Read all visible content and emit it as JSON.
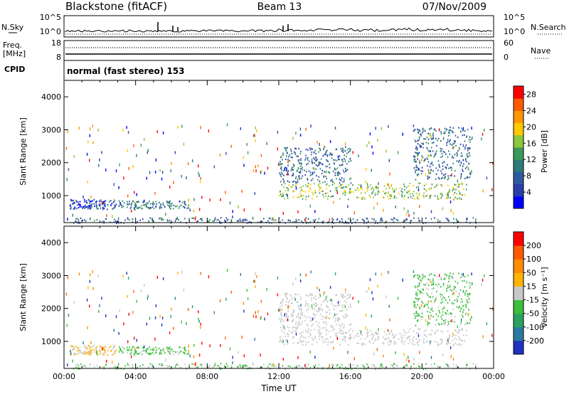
{
  "header": {
    "station": "Blackstone (fitACF)",
    "beam": "Beam 13",
    "date": "07/Nov/2009"
  },
  "nsky_panel": {
    "left_label": "N.Sky",
    "right_label": "N.Search",
    "left_ticks": [
      "10^5",
      "10^0"
    ],
    "right_ticks": [
      "10^5",
      "10^0"
    ]
  },
  "freq_panel": {
    "left_label_1": "Freq.",
    "left_label_2": "[MHz]",
    "right_label": "Nave",
    "left_ticks": [
      "18",
      "8"
    ],
    "right_ticks": [
      "60",
      "0"
    ]
  },
  "cpid_panel": {
    "label": "CPID",
    "program": "normal (fast stereo) 153"
  },
  "colors": {
    "power": [
      "#0000ff",
      "#2a3eaa",
      "#2e5aa0",
      "#2f7a7a",
      "#3a9a5a",
      "#8cc63c",
      "#ffc800",
      "#ff9600",
      "#ff5a00",
      "#ff0000"
    ],
    "velocity": [
      "#2030c0",
      "#2a7aa0",
      "#2aa060",
      "#3cbf3c",
      "#c8c8c8",
      "#ffb400",
      "#ff8c00",
      "#ff5a00",
      "#ff0000"
    ]
  },
  "chart_data": [
    {
      "type": "heatmap",
      "name": "power",
      "xlabel": "",
      "ylabel": "Slant Range [km]",
      "xlim": [
        0,
        24
      ],
      "ylim": [
        180,
        4500
      ],
      "yticks": [
        "1000",
        "2000",
        "3000",
        "4000"
      ],
      "colorbar": {
        "label": "Power [dB]",
        "ticks": [
          "4",
          "8",
          "12",
          "16",
          "20",
          "24",
          "28"
        ],
        "range": [
          0,
          30
        ]
      },
      "features": [
        {
          "x": [
            0.3,
            2.9
          ],
          "y": [
            600,
            900
          ],
          "value": 5
        },
        {
          "x": [
            3.0,
            7.0
          ],
          "y": [
            620,
            860
          ],
          "value": 10
        },
        {
          "x": [
            0.5,
            23.0
          ],
          "y": [
            180,
            350
          ],
          "value": 8
        },
        {
          "x": [
            12.0,
            22.5
          ],
          "y": [
            900,
            1400
          ],
          "value": 16
        },
        {
          "x": [
            12.0,
            16.0
          ],
          "y": [
            1400,
            2500
          ],
          "value": 8
        },
        {
          "x": [
            19.5,
            22.7
          ],
          "y": [
            1500,
            3100
          ],
          "value": 8
        }
      ]
    },
    {
      "type": "heatmap",
      "name": "velocity",
      "xlabel": "Time UT",
      "ylabel": "Slant Range [km]",
      "xlim": [
        0,
        24
      ],
      "ylim": [
        180,
        4500
      ],
      "xticks": [
        "00:00",
        "04:00",
        "08:00",
        "12:00",
        "16:00",
        "20:00",
        "00:00"
      ],
      "yticks": [
        "1000",
        "2000",
        "3000",
        "4000"
      ],
      "colorbar": {
        "label": "Velocity [m s⁻¹]",
        "ticks": [
          "200",
          "100",
          "50",
          "15",
          "-15",
          "-50",
          "-100",
          "-200"
        ],
        "range": [
          -250,
          250
        ]
      },
      "features": [
        {
          "x": [
            0.3,
            2.9
          ],
          "y": [
            600,
            900
          ],
          "value": 30
        },
        {
          "x": [
            3.0,
            7.0
          ],
          "y": [
            620,
            860
          ],
          "value": -40
        },
        {
          "x": [
            0.5,
            23.0
          ],
          "y": [
            180,
            350
          ],
          "value": -30
        },
        {
          "x": [
            12.0,
            22.5
          ],
          "y": [
            900,
            1400
          ],
          "value": 0
        },
        {
          "x": [
            12.0,
            16.0
          ],
          "y": [
            1400,
            2500
          ],
          "value": 0
        },
        {
          "x": [
            19.5,
            22.7
          ],
          "y": [
            1500,
            3100
          ],
          "value": -40
        }
      ]
    }
  ]
}
